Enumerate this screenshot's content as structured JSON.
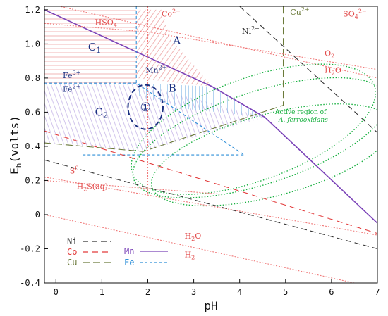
{
  "chart_data": {
    "type": "line",
    "title": "",
    "xlabel": "pH",
    "ylabel": "E",
    "ylabel_sub": "h",
    "ylabel_rest": "(volts)",
    "xlim": [
      -0.25,
      7
    ],
    "ylim": [
      -0.4,
      1.22
    ],
    "x_ticks": [
      0,
      1,
      2,
      3,
      4,
      5,
      6,
      7
    ],
    "y_ticks": [
      -0.4,
      -0.2,
      0,
      0.2,
      0.4,
      0.6,
      0.8,
      1.0,
      1.2
    ],
    "x_tick_labels": [
      "0",
      "1",
      "2",
      "3",
      "4",
      "5",
      "6",
      "7"
    ],
    "y_tick_labels": [
      "-0.4",
      "-0.2",
      "0",
      "0.2",
      "0.4",
      "0.6",
      "0.8",
      "1.0",
      "1.2"
    ],
    "grid": false,
    "series": [
      {
        "name": "Mn",
        "color": "#7b43b8",
        "dash": "solid",
        "points": [
          [
            -0.25,
            1.2
          ],
          [
            3.4,
            0.75
          ],
          [
            4.55,
            0.57
          ],
          [
            7.0,
            -0.05
          ]
        ]
      },
      {
        "name": "Fe",
        "color": "#2e8fd8",
        "dash": "4,3",
        "points": [
          [
            -0.25,
            0.77
          ],
          [
            1.75,
            0.77
          ],
          [
            4.1,
            0.35
          ],
          [
            0.55,
            0.35
          ]
        ]
      },
      {
        "name": "Fe",
        "color": "#2e8fd8",
        "dash": "4,3",
        "points": [
          [
            1.75,
            1.22
          ],
          [
            1.75,
            0.77
          ]
        ]
      },
      {
        "name": "Cu",
        "color": "#6b7a3a",
        "dash": "10,5",
        "points": [
          [
            -0.25,
            0.42
          ],
          [
            1.9,
            0.37
          ],
          [
            4.95,
            0.64
          ],
          [
            4.95,
            1.22
          ]
        ]
      },
      {
        "name": "Ni",
        "color": "#333333",
        "dash": "8,5",
        "points": [
          [
            4.0,
            1.22
          ],
          [
            7.0,
            0.48
          ]
        ]
      },
      {
        "name": "Ni",
        "color": "#333333",
        "dash": "8,5",
        "points": [
          [
            -0.25,
            0.32
          ],
          [
            7.0,
            -0.2
          ]
        ]
      },
      {
        "name": "Co",
        "color": "#e23b3b",
        "dash": "8,6",
        "points": [
          [
            -0.25,
            0.49
          ],
          [
            7.0,
            -0.11
          ]
        ]
      },
      {
        "name": "H2O/O2",
        "color": "#f07a7a",
        "dash": "2,2",
        "points": [
          [
            -0.25,
            1.24
          ],
          [
            7.0,
            0.8
          ]
        ]
      },
      {
        "name": "H2O/H2",
        "color": "#f07a7a",
        "dash": "2,2",
        "points": [
          [
            -0.25,
            0.0
          ],
          [
            7.0,
            -0.43
          ]
        ]
      },
      {
        "name": "HSO4",
        "color": "#f07a7a",
        "dash": "2,2",
        "points": [
          [
            -0.25,
            1.12
          ],
          [
            2.0,
            1.07
          ],
          [
            7.0,
            0.85
          ]
        ]
      },
      {
        "name": "S",
        "color": "#f07a7a",
        "dash": "2,2",
        "points": [
          [
            -0.25,
            0.22
          ],
          [
            7.0,
            -0.12
          ]
        ]
      },
      {
        "name": "Mn2+",
        "color": "#f07a7a",
        "dash": "2,2",
        "points": [
          [
            2.0,
            1.22
          ],
          [
            2.0,
            0.12
          ]
        ]
      },
      {
        "name": "H2S",
        "color": "#f07a7a",
        "dash": "2,2",
        "points": [
          [
            -0.25,
            0.2
          ],
          [
            3.6,
            0.12
          ]
        ]
      }
    ],
    "regions": [
      {
        "name": "C1",
        "color": "#e24a4a",
        "points": [
          [
            -0.25,
            1.2
          ],
          [
            1.75,
            1.2
          ],
          [
            1.75,
            0.77
          ],
          [
            -0.25,
            0.77
          ]
        ]
      },
      {
        "name": "A",
        "color": "#e24a4a",
        "points": [
          [
            1.75,
            1.2
          ],
          [
            1.75,
            0.8
          ],
          [
            3.4,
            0.75
          ],
          [
            2.5,
            1.03
          ],
          [
            2.3,
            1.2
          ]
        ]
      },
      {
        "name": "C2",
        "color": "#a98ad6",
        "points": [
          [
            -0.25,
            0.77
          ],
          [
            1.75,
            0.77
          ],
          [
            4.55,
            0.57
          ],
          [
            1.9,
            0.37
          ],
          [
            -0.25,
            0.42
          ]
        ]
      },
      {
        "name": "B",
        "color": "#2e8fd8",
        "points": [
          [
            1.75,
            0.77
          ],
          [
            3.4,
            0.75
          ],
          [
            4.55,
            0.57
          ],
          [
            2.8,
            0.62
          ],
          [
            1.75,
            0.7
          ]
        ]
      }
    ],
    "circle_marker": {
      "x": 1.95,
      "y": 0.63,
      "rx": 0.38,
      "ry": 0.13,
      "label": "①"
    },
    "active_region": {
      "label_line1": "Active region of",
      "label_line2": "A. ferrooxidans",
      "color": "#18b040",
      "ellipses": [
        {
          "cx": 4.45,
          "cy": 0.45,
          "rx": 2.9,
          "ry": 0.27,
          "angle": -18
        },
        {
          "cx": 4.7,
          "cy": 0.35,
          "rx": 2.7,
          "ry": 0.24,
          "angle": -15
        },
        {
          "cx": 4.3,
          "cy": 0.5,
          "rx": 2.8,
          "ry": 0.3,
          "angle": -20
        }
      ]
    },
    "species_labels": [
      {
        "text": "HSO",
        "sub": "4",
        "sup": "−",
        "x": 0.85,
        "y": 1.11,
        "color": "#e24a4a"
      },
      {
        "text": "Co",
        "sup": "2+",
        "x": 2.3,
        "y": 1.16,
        "color": "#e24a4a"
      },
      {
        "text": "Ni",
        "sup": "2+",
        "x": 4.05,
        "y": 1.06,
        "color": "#333333"
      },
      {
        "text": "Cu",
        "sup": "2+",
        "x": 5.1,
        "y": 1.17,
        "color": "#6b7a3a"
      },
      {
        "text": "SO",
        "sub": "4",
        "sup": "2−",
        "x": 6.25,
        "y": 1.16,
        "color": "#e24a4a"
      },
      {
        "text": "C",
        "sub": "1",
        "x": 0.7,
        "y": 0.96,
        "color": "#1a2f80",
        "big": true
      },
      {
        "text": "A",
        "x": 2.55,
        "y": 1.0,
        "color": "#1a2f80",
        "big": true
      },
      {
        "text": "Mn",
        "sup": "2+",
        "x": 1.95,
        "y": 0.83,
        "color": "#1a2f80"
      },
      {
        "text": "O",
        "sub": "2",
        "x": 5.85,
        "y": 0.93,
        "color": "#e24a4a"
      },
      {
        "text": "H",
        "sub": "2",
        "rest": "O",
        "x": 5.85,
        "y": 0.83,
        "color": "#e24a4a"
      },
      {
        "text": "Fe",
        "sup": "3+",
        "x": 0.15,
        "y": 0.8,
        "color": "#1a2f80"
      },
      {
        "text": "Fe",
        "sup": "2+",
        "x": 0.15,
        "y": 0.72,
        "color": "#1a2f80"
      },
      {
        "text": "B",
        "x": 2.45,
        "y": 0.72,
        "color": "#1a2f80",
        "big": true
      },
      {
        "text": "C",
        "sub": "2",
        "x": 0.85,
        "y": 0.58,
        "color": "#1a2f80",
        "big": true
      },
      {
        "text": "S",
        "sup": "0",
        "x": 0.3,
        "y": 0.24,
        "color": "#e24a4a"
      },
      {
        "text": "H",
        "sub": "2",
        "rest": "S(aq)",
        "x": 0.45,
        "y": 0.15,
        "color": "#e24a4a"
      },
      {
        "text": "H",
        "sub": "2",
        "rest": "O",
        "x": 2.8,
        "y": -0.14,
        "color": "#e24a4a"
      },
      {
        "text": "H",
        "sub": "2",
        "x": 2.8,
        "y": -0.25,
        "color": "#e24a4a"
      }
    ],
    "legend": [
      {
        "label": "Ni",
        "color": "#333333",
        "dash": "8,5"
      },
      {
        "label": "Co",
        "color": "#e23b3b",
        "dash": "8,6"
      },
      {
        "label": "Cu",
        "color": "#6b7a3a",
        "dash": "10,5"
      },
      {
        "label": "Mn",
        "color": "#7b43b8",
        "dash": "solid"
      },
      {
        "label": "Fe",
        "color": "#2e8fd8",
        "dash": "4,3"
      }
    ],
    "legend_placement": "bottom-left"
  }
}
